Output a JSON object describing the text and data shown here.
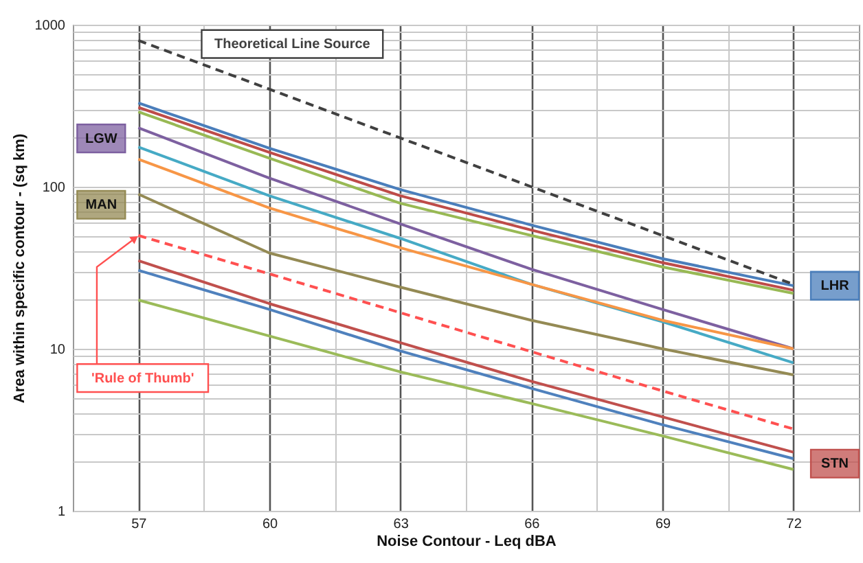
{
  "chart_data": {
    "type": "line",
    "xlabel": "Noise Contour -  Leq dBA",
    "ylabel": "Area within specific contour - (sq km)",
    "x": [
      57,
      60,
      63,
      66,
      69,
      72
    ],
    "series": [
      {
        "name": "LHR",
        "color": "#4a7ebb",
        "values": [
          329,
          173,
          96,
          58,
          36,
          24.5
        ]
      },
      {
        "color": "#be4b48",
        "values": [
          309,
          163,
          88,
          54,
          34,
          23
        ]
      },
      {
        "color": "#98b954",
        "values": [
          290,
          150,
          79,
          50,
          32,
          22
        ]
      },
      {
        "name": "LGW",
        "color": "#7d60a0",
        "values": [
          231,
          113,
          59,
          31,
          17.5,
          10
        ]
      },
      {
        "color": "#46aac5",
        "values": [
          176,
          88,
          48,
          25,
          14.7,
          8.2
        ]
      },
      {
        "color": "#f79646",
        "values": [
          148,
          74,
          42,
          25,
          15,
          10
        ]
      },
      {
        "name": "MAN",
        "color": "#948a54",
        "values": [
          90,
          39,
          24,
          15,
          10,
          6.9
        ]
      },
      {
        "name": "STN",
        "color": "#c0504d",
        "values": [
          35,
          19,
          10.9,
          6.3,
          3.8,
          2.3
        ]
      },
      {
        "color": "#4f81bd",
        "values": [
          30.5,
          17.5,
          9.7,
          5.7,
          3.4,
          2.1
        ]
      },
      {
        "color": "#9bbb59",
        "values": [
          20,
          12,
          7.2,
          4.6,
          2.9,
          1.8
        ]
      },
      {
        "name": "Theoretical Line Source",
        "color": "#404040",
        "line_style": "dashed",
        "values": [
          800,
          400,
          200,
          100,
          50,
          25
        ]
      },
      {
        "name": "'Rule of Thumb'",
        "color": "#ff5050",
        "line_style": "dashed",
        "values": [
          50,
          29,
          16.7,
          9.6,
          5.5,
          3.2
        ]
      }
    ],
    "xlim": [
      55.5,
      73.5
    ],
    "xticks": [
      57,
      {
        "value": 58.5,
        "label": null
      },
      60,
      {
        "value": 61.5,
        "label": null
      },
      63,
      {
        "value": 64.5,
        "label": null
      },
      66,
      {
        "value": 67.5,
        "label": null
      },
      69,
      {
        "value": 70.5,
        "label": null
      },
      72
    ],
    "ylim": [
      1,
      1000
    ],
    "yticks": [
      1,
      {
        "value": 2,
        "label": null
      },
      {
        "value": 3,
        "label": null
      },
      {
        "value": 4,
        "label": null
      },
      {
        "value": 5,
        "label": null
      },
      {
        "value": 6,
        "label": null
      },
      {
        "value": 7,
        "label": null
      },
      {
        "value": 8,
        "label": null
      },
      {
        "value": 9,
        "label": null
      },
      10,
      {
        "value": 20,
        "label": null
      },
      {
        "value": 30,
        "label": null
      },
      {
        "value": 40,
        "label": null
      },
      {
        "value": 50,
        "label": null
      },
      {
        "value": 60,
        "label": null
      },
      {
        "value": 70,
        "label": null
      },
      {
        "value": 80,
        "label": null
      },
      {
        "value": 90,
        "label": null
      },
      100,
      {
        "value": 200,
        "label": null
      },
      {
        "value": 300,
        "label": null
      },
      {
        "value": 400,
        "label": null
      },
      {
        "value": 500,
        "label": null
      },
      {
        "value": 600,
        "label": null
      },
      {
        "value": 700,
        "label": null
      },
      {
        "value": 800,
        "label": null
      },
      {
        "value": 900,
        "label": null
      },
      1000
    ],
    "log": "y",
    "grid": true,
    "marker": "none",
    "line_style": "solid"
  }
}
